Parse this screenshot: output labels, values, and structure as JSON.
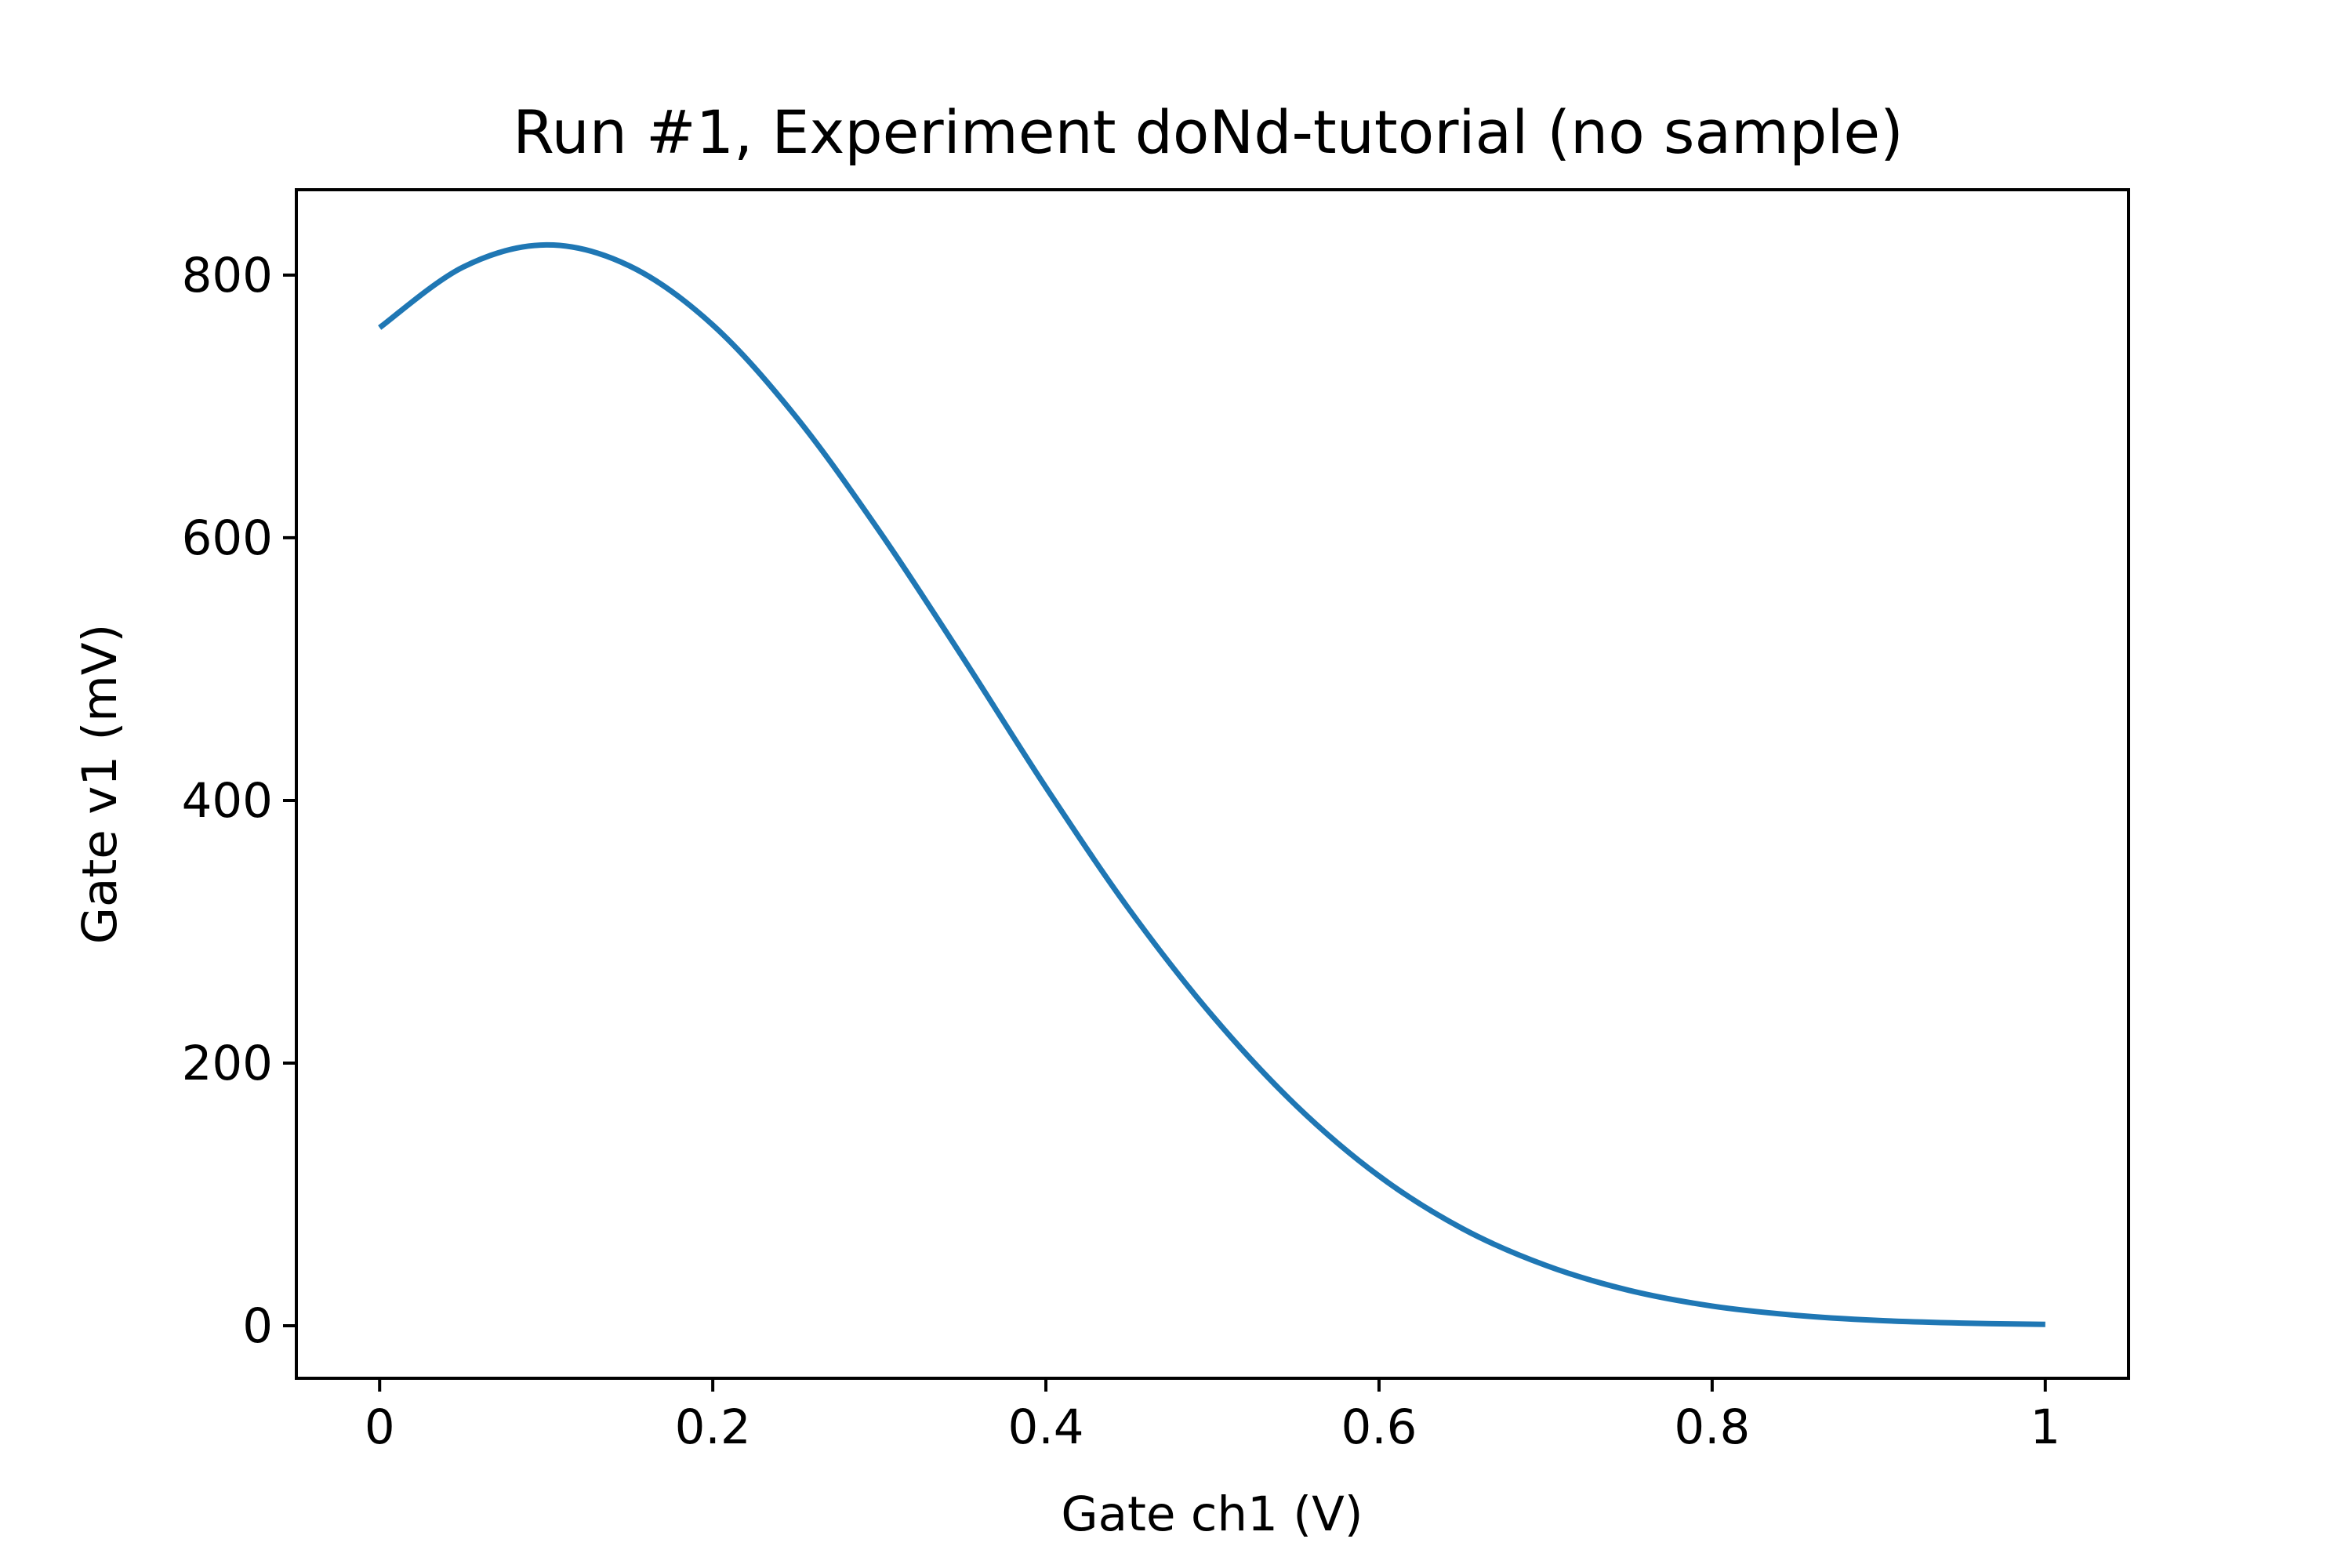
{
  "chart_data": {
    "type": "line",
    "title": "Run #1, Experiment doNd-tutorial (no sample)",
    "xlabel": "Gate ch1 (V)",
    "ylabel": "Gate v1 (mV)",
    "xlim": [
      -0.05,
      1.05
    ],
    "ylim": [
      -40,
      865
    ],
    "grid": false,
    "x_ticks": [
      {
        "value": 0,
        "label": "0"
      },
      {
        "value": 0.2,
        "label": "0.2"
      },
      {
        "value": 0.4,
        "label": "0.4"
      },
      {
        "value": 0.6,
        "label": "0.6"
      },
      {
        "value": 0.8,
        "label": "0.8"
      },
      {
        "value": 1,
        "label": "1"
      }
    ],
    "y_ticks": [
      {
        "value": 0,
        "label": "0"
      },
      {
        "value": 200,
        "label": "200"
      },
      {
        "value": 400,
        "label": "400"
      },
      {
        "value": 600,
        "label": "600"
      },
      {
        "value": 800,
        "label": "800"
      }
    ],
    "series": [
      {
        "color": "#1f77b4",
        "x": [
          0,
          0.05,
          0.1,
          0.15,
          0.2,
          0.25,
          0.3,
          0.35,
          0.4,
          0.45,
          0.5,
          0.55,
          0.6,
          0.65,
          0.7,
          0.75,
          0.8,
          0.85,
          0.9,
          0.95,
          1.0
        ],
        "y": [
          760,
          806,
          823,
          807,
          762,
          692,
          605,
          509,
          410,
          317,
          236,
          168,
          114,
          74,
          46,
          27,
          15,
          8,
          4,
          2,
          1
        ]
      }
    ]
  }
}
